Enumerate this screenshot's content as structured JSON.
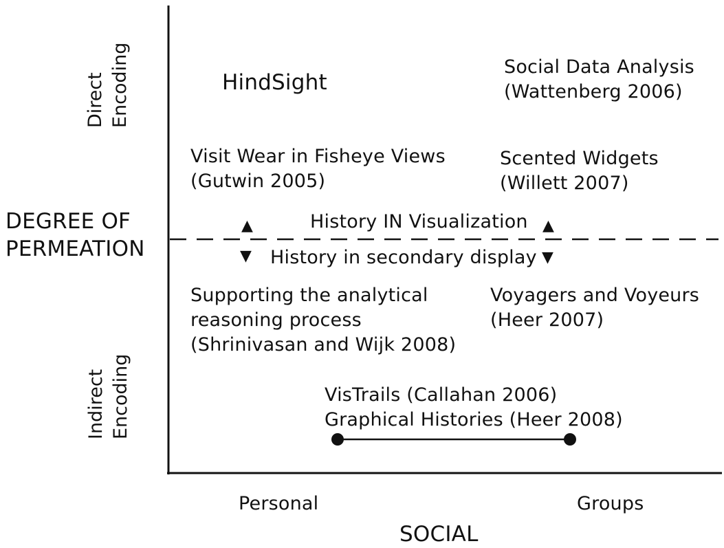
{
  "axes": {
    "x_title": "SOCIAL",
    "x_low": "Personal",
    "x_high": "Groups",
    "y_title": [
      "DEGREE OF",
      "PERMEATION"
    ],
    "y_high": [
      "Direct",
      "Encoding"
    ],
    "y_low": [
      "Indirect",
      "Encoding"
    ]
  },
  "divider": {
    "above_label": "History IN Visualization",
    "below_label": "History in secondary display"
  },
  "items": {
    "hindsight": [
      "HindSight"
    ],
    "social_data_analysis": [
      "Social Data Analysis",
      "(Wattenberg 2006)"
    ],
    "visit_wear": [
      "Visit Wear in Fisheye Views",
      "(Gutwin 2005)"
    ],
    "scented_widgets": [
      "Scented Widgets",
      "(Willett 2007)"
    ],
    "analytical_reasoning": [
      "Supporting the analytical",
      "reasoning process",
      "(Shrinivasan and Wijk 2008)"
    ],
    "voyagers": [
      "Voyagers and Voyeurs",
      "(Heer 2007)"
    ],
    "vistrails": [
      "VisTrails (Callahan 2006)",
      "Graphical Histories (Heer 2008)"
    ]
  },
  "icons": {
    "up": "arrow-up-icon",
    "down": "arrow-down-icon"
  },
  "colors": {
    "ink": "#111111"
  }
}
